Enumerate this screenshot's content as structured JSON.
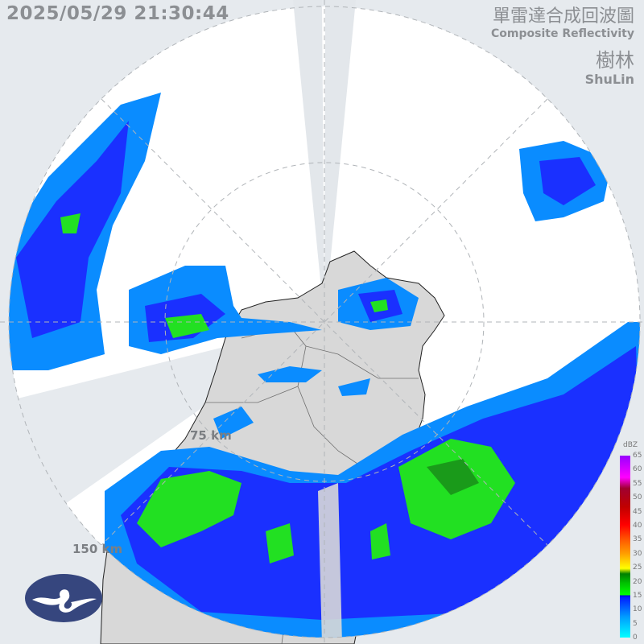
{
  "header": {
    "timestamp": "2025/05/29 21:30:44",
    "title_zh": "單雷達合成回波圖",
    "title_en": "Composite Reflectivity",
    "station_zh": "樹林",
    "station_en": "ShuLin"
  },
  "range_rings": {
    "inner": "75 km",
    "outer": "150 km"
  },
  "legend": {
    "unit": "dBZ",
    "ticks": [
      "65",
      "60",
      "55",
      "50",
      "45",
      "40",
      "35",
      "30",
      "25",
      "20",
      "15",
      "10",
      "5",
      "0"
    ]
  },
  "colors": {
    "background": "#e6eaee",
    "coverage": "#ffffff",
    "land": "#d8d8d8",
    "echo_light_blue": "#0a8cff",
    "echo_blue": "#1a30ff",
    "echo_green": "#22e022",
    "logo": "#36467e"
  },
  "logo": {
    "icon": "cwa-cloud-logo"
  }
}
